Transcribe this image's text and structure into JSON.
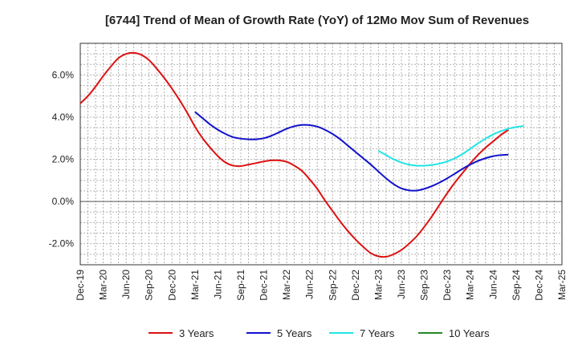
{
  "chart_data": {
    "type": "line",
    "title": "[6744]  Trend of Mean of Growth Rate (YoY) of 12Mo Mov Sum of Revenues",
    "xlabel": "",
    "ylabel": "",
    "ylim": [
      -3.0,
      7.5
    ],
    "yticks": [
      -2.0,
      0.0,
      2.0,
      4.0,
      6.0
    ],
    "ytick_labels": [
      "-2.0%",
      "0.0%",
      "2.0%",
      "4.0%",
      "6.0%"
    ],
    "x_start": "Dec-19",
    "x_end": "Mar-25",
    "xtick_labels": [
      "Dec-19",
      "Mar-20",
      "Jun-20",
      "Sep-20",
      "Dec-20",
      "Mar-21",
      "Jun-21",
      "Sep-21",
      "Dec-21",
      "Mar-22",
      "Jun-22",
      "Sep-22",
      "Dec-22",
      "Mar-23",
      "Jun-23",
      "Sep-23",
      "Dec-23",
      "Mar-24",
      "Jun-24",
      "Sep-24",
      "Dec-24",
      "Mar-25"
    ],
    "grid": true,
    "legend_position": "bottom",
    "series": [
      {
        "name": "3 Years",
        "color": "#dd1111",
        "start_month": 0,
        "values": [
          4.65,
          5.0,
          5.45,
          5.95,
          6.4,
          6.8,
          7.0,
          7.05,
          6.95,
          6.7,
          6.3,
          5.85,
          5.35,
          4.8,
          4.2,
          3.55,
          3.0,
          2.55,
          2.15,
          1.85,
          1.7,
          1.68,
          1.75,
          1.82,
          1.9,
          1.95,
          1.95,
          1.88,
          1.7,
          1.45,
          1.05,
          0.6,
          0.05,
          -0.45,
          -0.95,
          -1.4,
          -1.8,
          -2.15,
          -2.45,
          -2.6,
          -2.62,
          -2.5,
          -2.3,
          -2.0,
          -1.65,
          -1.2,
          -0.7,
          -0.15,
          0.4,
          0.9,
          1.35,
          1.8,
          2.2,
          2.55,
          2.85,
          3.15,
          3.4
        ]
      },
      {
        "name": "5 Years",
        "color": "#1111cc",
        "start_month": 15,
        "values": [
          4.25,
          3.95,
          3.65,
          3.4,
          3.2,
          3.05,
          2.98,
          2.95,
          2.95,
          3.0,
          3.12,
          3.28,
          3.45,
          3.57,
          3.63,
          3.62,
          3.55,
          3.4,
          3.2,
          2.95,
          2.65,
          2.35,
          2.05,
          1.75,
          1.42,
          1.1,
          0.82,
          0.62,
          0.53,
          0.52,
          0.6,
          0.73,
          0.9,
          1.1,
          1.32,
          1.55,
          1.75,
          1.92,
          2.05,
          2.15,
          2.2,
          2.22
        ]
      },
      {
        "name": "7 Years",
        "color": "#22e5e5",
        "start_month": 39,
        "values": [
          2.4,
          2.2,
          2.0,
          1.85,
          1.75,
          1.7,
          1.7,
          1.73,
          1.8,
          1.9,
          2.05,
          2.25,
          2.5,
          2.75,
          2.98,
          3.18,
          3.33,
          3.45,
          3.53,
          3.58
        ]
      },
      {
        "name": "10 Years",
        "color": "#228b22",
        "start_month": 0,
        "values": []
      }
    ]
  }
}
